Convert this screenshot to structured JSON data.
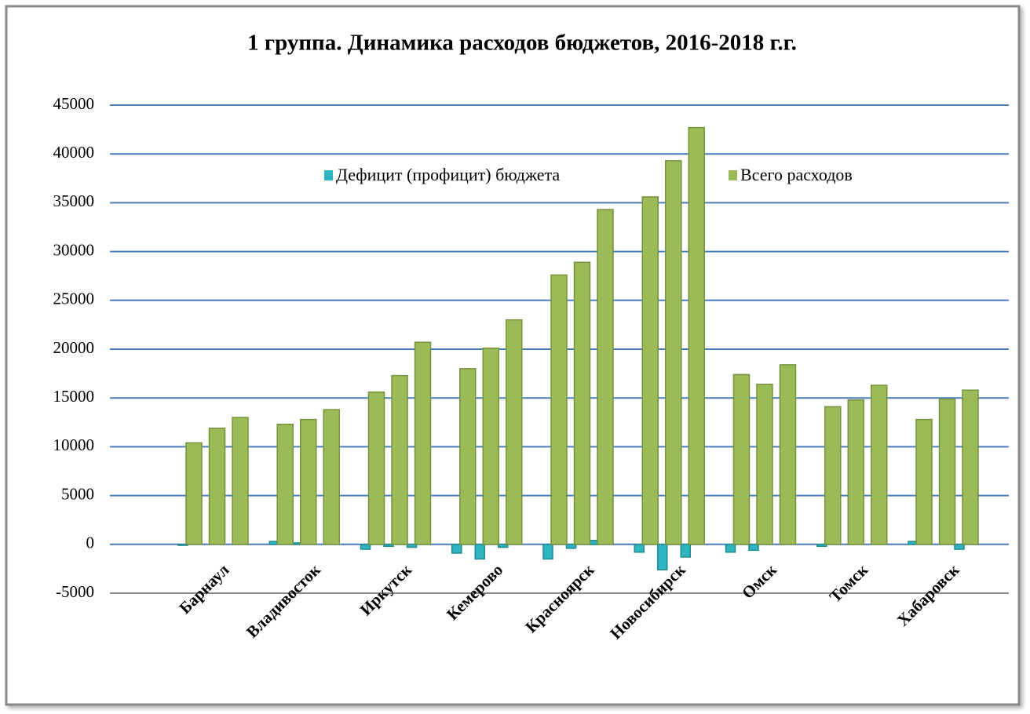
{
  "chart_data": {
    "type": "bar",
    "title": "1 группа. Динамика расходов бюджетов, 2016-2018 г.г.",
    "categories": [
      null,
      "Барнаул",
      null,
      null,
      "Владивосток",
      null,
      null,
      "Иркутск",
      null,
      null,
      "Кемерово",
      null,
      null,
      "Красноярск",
      null,
      null,
      "Новосибирск",
      null,
      null,
      "Омск",
      null,
      null,
      "Томск",
      null,
      null,
      "Хабаровск",
      null
    ],
    "series": [
      {
        "name": "Дефицит (профицит) бюджета",
        "color": "#2fb5bf",
        "values": [
          -100,
          0,
          0,
          300,
          150,
          0,
          -500,
          -200,
          -300,
          -900,
          -1500,
          -300,
          -1500,
          -400,
          400,
          -800,
          -2600,
          -1300,
          -800,
          -600,
          0,
          -200,
          0,
          0,
          300,
          0,
          -500
        ]
      },
      {
        "name": "Всего расходов",
        "color": "#9bbb59",
        "values": [
          10400,
          11900,
          13000,
          12300,
          12800,
          13800,
          15600,
          17300,
          20700,
          18000,
          20100,
          23000,
          27600,
          28900,
          34300,
          35600,
          39300,
          42700,
          17400,
          16400,
          18400,
          14100,
          14800,
          16300,
          12800,
          14900,
          15800
        ]
      }
    ],
    "ylim": [
      -5000,
      45000
    ],
    "yticks": [
      -5000,
      0,
      5000,
      10000,
      15000,
      20000,
      25000,
      30000,
      35000,
      40000,
      45000
    ],
    "grid": true,
    "legend": "top"
  }
}
